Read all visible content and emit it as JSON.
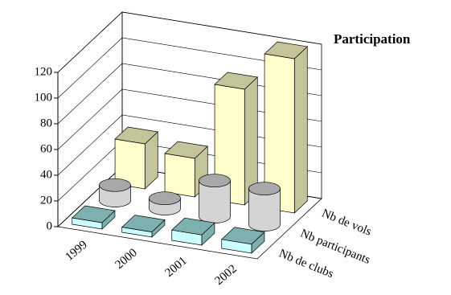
{
  "chart_data": {
    "type": "bar3d",
    "title": "Participation",
    "categories": [
      "1999",
      "2000",
      "2001",
      "2002"
    ],
    "series": [
      {
        "name": "Nb de clubs",
        "shape": "box",
        "color": "#ccffff",
        "top_color": "#7fb0b0",
        "values": [
          5,
          4,
          8,
          7
        ]
      },
      {
        "name": "Nb participants",
        "shape": "cylinder",
        "color": "#d4d4d4",
        "top_color": "#a8a8a8",
        "values": [
          12,
          8,
          28,
          28
        ]
      },
      {
        "name": "Nb de vols",
        "shape": "box",
        "color": "#ffffcc",
        "top_color": "#c4c49a",
        "values": [
          35,
          30,
          90,
          120
        ]
      }
    ],
    "ylim": [
      0,
      120
    ],
    "yticks": [
      0,
      20,
      40,
      60,
      80,
      100,
      120
    ],
    "grid": true
  }
}
